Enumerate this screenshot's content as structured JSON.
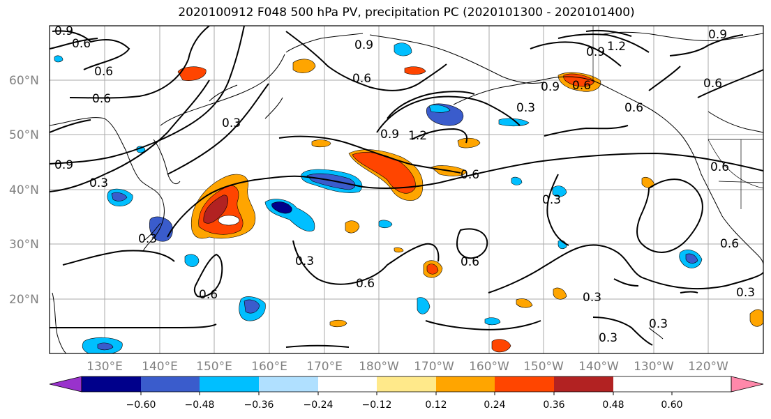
{
  "title": "2020100912 F048 500 hPa PV, precipitation PC (2020101300 - 2020101400)",
  "lat_labels": [
    "60°N",
    "50°N",
    "40°N",
    "30°N",
    "20°N"
  ],
  "lon_labels": [
    "130°E",
    "140°E",
    "150°E",
    "160°E",
    "170°E",
    "180°W",
    "170°W",
    "160°W",
    "150°W",
    "140°W",
    "130°W",
    "120°W"
  ],
  "colorbar": {
    "colors": [
      "#9932cc",
      "#00008b",
      "#3a5ccc",
      "#00bfff",
      "#b0e0ff",
      "#ffffff",
      "#ffe98a",
      "#ffa500",
      "#ff4500",
      "#b22222",
      "#ff88aa"
    ],
    "tick_labels": [
      "−0.60",
      "−0.48",
      "−0.36",
      "−0.24",
      "−0.12",
      "0.12",
      "0.24",
      "0.36",
      "0.48",
      "0.60"
    ]
  },
  "contour_labels": [
    "0.9",
    "0.6",
    "0.6",
    "0.6",
    "0.9",
    "0.3",
    "0.3",
    "0.6",
    "0.9",
    "0.9",
    "1.2",
    "0.9",
    "0.6",
    "0.9",
    "1.2",
    "0.6",
    "0.6",
    "0.6",
    "0.3",
    "0.6",
    "0.3",
    "0.3",
    "0.6",
    "0.6",
    "0.3",
    "0.3",
    "0.3",
    "0.3",
    "0.6",
    "0.6",
    "0.3",
    "0.9"
  ],
  "icons": {
    "colorbar_min_arrow": "triangle-left",
    "colorbar_max_arrow": "triangle-right"
  }
}
